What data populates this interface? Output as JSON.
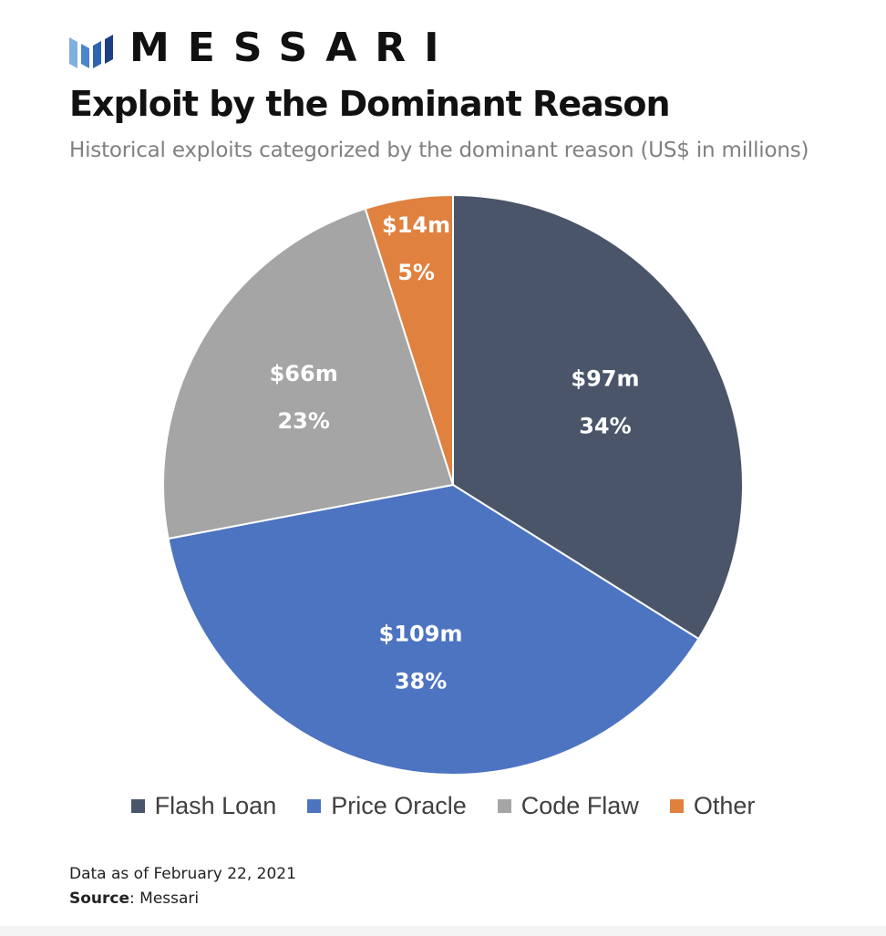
{
  "brand": {
    "logo_icon": "messari-logo-icon",
    "name": "MESSARI"
  },
  "chart_data": {
    "type": "pie",
    "title": "Exploit by the Dominant Reason",
    "subtitle": "Historical exploits categorized by the dominant reason (US$ in millions)",
    "slices": [
      {
        "name": "Flash Loan",
        "value": 97,
        "value_label": "$97m",
        "percent_label": "34%",
        "color": "#4a5569"
      },
      {
        "name": "Price Oracle",
        "value": 109,
        "value_label": "$109m",
        "percent_label": "38%",
        "color": "#4d74c1"
      },
      {
        "name": "Code Flaw",
        "value": 66,
        "value_label": "$66m",
        "percent_label": "23%",
        "color": "#a5a5a5"
      },
      {
        "name": "Other",
        "value": 14,
        "value_label": "$14m",
        "percent_label": "5%",
        "color": "#e08140"
      }
    ],
    "legend_position": "bottom"
  },
  "footer": {
    "date_note": "Data as of February 22, 2021",
    "source_prefix": "Source",
    "source_value": ": Messari"
  }
}
